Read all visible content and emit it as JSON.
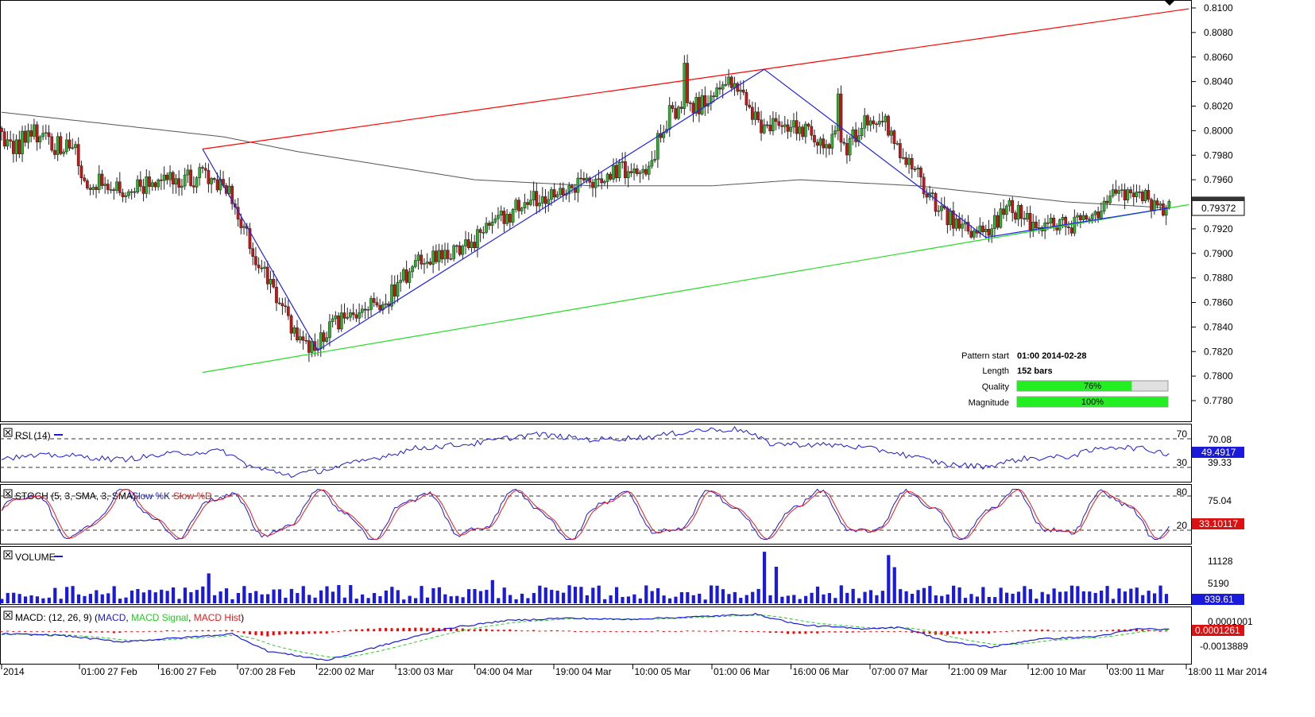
{
  "chart_data": [
    {
      "type": "candlestick",
      "pane": "price",
      "price_axis": {
        "ticks": [
          "0.8100",
          "0.8080",
          "0.8060",
          "0.8040",
          "0.8020",
          "0.8000",
          "0.7980",
          "0.7960",
          "0.7940",
          "0.7920",
          "0.7900",
          "0.7880",
          "0.7860",
          "0.7840",
          "0.7820",
          "0.7800",
          "0.7780"
        ],
        "ylim": [
          0.7767,
          0.8106
        ]
      },
      "last_price_label": "0.79372",
      "close_waypoints": [
        [
          0,
          0.7995
        ],
        [
          5,
          0.7985
        ],
        [
          10,
          0.8002
        ],
        [
          18,
          0.7988
        ],
        [
          24,
          0.799
        ],
        [
          28,
          0.796
        ],
        [
          40,
          0.7952
        ],
        [
          50,
          0.7955
        ],
        [
          60,
          0.796
        ],
        [
          68,
          0.7963
        ],
        [
          75,
          0.7955
        ],
        [
          80,
          0.7935
        ],
        [
          85,
          0.79
        ],
        [
          92,
          0.787
        ],
        [
          98,
          0.784
        ],
        [
          103,
          0.7825
        ],
        [
          108,
          0.783
        ],
        [
          112,
          0.7845
        ],
        [
          120,
          0.785
        ],
        [
          130,
          0.7862
        ],
        [
          140,
          0.789
        ],
        [
          150,
          0.79
        ],
        [
          160,
          0.791
        ],
        [
          170,
          0.793
        ],
        [
          180,
          0.7945
        ],
        [
          190,
          0.795
        ],
        [
          200,
          0.796
        ],
        [
          210,
          0.797
        ],
        [
          218,
          0.7965
        ],
        [
          226,
          0.8015
        ],
        [
          236,
          0.802
        ],
        [
          244,
          0.8042
        ],
        [
          250,
          0.803
        ],
        [
          256,
          0.8005
        ],
        [
          264,
          0.8008
        ],
        [
          272,
          0.8
        ],
        [
          280,
          0.799
        ],
        [
          286,
          0.7985
        ],
        [
          292,
          0.8012
        ],
        [
          298,
          0.801
        ],
        [
          304,
          0.7985
        ],
        [
          312,
          0.7955
        ],
        [
          318,
          0.7933
        ],
        [
          326,
          0.792
        ],
        [
          334,
          0.7915
        ],
        [
          340,
          0.7942
        ],
        [
          350,
          0.792
        ],
        [
          360,
          0.7923
        ],
        [
          370,
          0.7928
        ],
        [
          378,
          0.795
        ],
        [
          384,
          0.7947
        ],
        [
          390,
          0.794
        ],
        [
          395,
          0.7937
        ]
      ],
      "close_spikes": [
        [
          231,
          0.8055
        ],
        [
          283,
          0.803
        ],
        [
          282,
          0.8
        ]
      ],
      "moving_average": [
        [
          0,
          0.8015
        ],
        [
          75,
          0.7995
        ],
        [
          100,
          0.7983
        ],
        [
          160,
          0.796
        ],
        [
          200,
          0.7955
        ],
        [
          240,
          0.7955
        ],
        [
          270,
          0.796
        ],
        [
          310,
          0.7955
        ],
        [
          360,
          0.7942
        ],
        [
          395,
          0.7937
        ]
      ],
      "channel_upper": {
        "from": [
          68,
          0.7985
        ],
        "to": [
          395,
          0.8097
        ]
      },
      "channel_lower": {
        "from": [
          68,
          0.7803
        ],
        "to": [
          395,
          0.7937
        ]
      },
      "pattern_zigzag": [
        [
          68,
          0.7985
        ],
        [
          107,
          0.7821
        ],
        [
          258,
          0.805
        ],
        [
          333,
          0.7913
        ],
        [
          395,
          0.7937
        ]
      ]
    },
    {
      "type": "line",
      "pane": "RSI",
      "title": "RSI (14)",
      "levels": [
        70,
        30
      ],
      "ylim": [
        20,
        80
      ],
      "axis_labels": [
        "70.08",
        "39.33"
      ],
      "last_value_label": "49.4917",
      "waypoints": [
        [
          0,
          45
        ],
        [
          20,
          48
        ],
        [
          40,
          43
        ],
        [
          60,
          50
        ],
        [
          75,
          52
        ],
        [
          85,
          35
        ],
        [
          98,
          27
        ],
        [
          107,
          31
        ],
        [
          120,
          40
        ],
        [
          140,
          55
        ],
        [
          160,
          60
        ],
        [
          180,
          70
        ],
        [
          200,
          64
        ],
        [
          220,
          67
        ],
        [
          235,
          74
        ],
        [
          250,
          75
        ],
        [
          260,
          60
        ],
        [
          285,
          58
        ],
        [
          300,
          52
        ],
        [
          320,
          38
        ],
        [
          333,
          36
        ],
        [
          345,
          44
        ],
        [
          360,
          46
        ],
        [
          375,
          57
        ],
        [
          385,
          55
        ],
        [
          395,
          49.5
        ]
      ]
    },
    {
      "type": "line",
      "pane": "STOCH",
      "title": "STOCH (5, 3, SMA, 3, SMA)",
      "series": [
        {
          "name": "Slow %K"
        },
        {
          "name": "Slow %D"
        }
      ],
      "levels": [
        80,
        20
      ],
      "ylim": [
        0,
        100
      ],
      "axis_labels": [
        "75.04"
      ],
      "last_value_label": "33.10117"
    },
    {
      "type": "bar",
      "pane": "VOLUME",
      "title": "VOLUME",
      "ylim": [
        0,
        13000
      ],
      "axis_labels": [
        "11128",
        "5190"
      ],
      "last_value_label": "939.61",
      "spikes": [
        [
          70,
          7200
        ],
        [
          110,
          4100
        ],
        [
          165,
          5600
        ],
        [
          258,
          12400
        ],
        [
          262,
          8800
        ],
        [
          300,
          11600
        ],
        [
          302,
          8700
        ]
      ]
    },
    {
      "type": "line",
      "pane": "MACD",
      "title": "MACD: (12, 26, 9)",
      "series": [
        {
          "name": "MACD"
        },
        {
          "name": "MACD Signal"
        },
        {
          "name": "MACD Hist"
        }
      ],
      "ylim": [
        -0.0024,
        0.0017
      ],
      "axis_labels": [
        "0.0001001",
        "-0.0013889"
      ],
      "last_value_label": "0.0001261",
      "macd_waypoints": [
        [
          0,
          -0.0002
        ],
        [
          20,
          -0.0003
        ],
        [
          40,
          -0.0008
        ],
        [
          60,
          -0.0005
        ],
        [
          78,
          -0.0002
        ],
        [
          90,
          -0.0015
        ],
        [
          110,
          -0.0022
        ],
        [
          130,
          -0.001
        ],
        [
          150,
          0.0002
        ],
        [
          170,
          0.0008
        ],
        [
          190,
          0.001
        ],
        [
          210,
          0.0009
        ],
        [
          235,
          0.0011
        ],
        [
          255,
          0.0013
        ],
        [
          270,
          0.0005
        ],
        [
          290,
          0.0002
        ],
        [
          305,
          0.0003
        ],
        [
          320,
          -0.0008
        ],
        [
          335,
          -0.0012
        ],
        [
          350,
          -0.0006
        ],
        [
          370,
          -0.0004
        ],
        [
          385,
          0.0002
        ],
        [
          395,
          0.00013
        ]
      ]
    }
  ],
  "time_axis": [
    "2014",
    "01:00 27 Feb",
    "16:00 27 Feb",
    "07:00 28 Feb",
    "22:00 02 Mar",
    "13:00 03 Mar",
    "04:00 04 Mar",
    "19:00 04 Mar",
    "10:00 05 Mar",
    "01:00 06 Mar",
    "16:00 06 Mar",
    "07:00 07 Mar",
    "21:00 09 Mar",
    "12:00 10 Mar",
    "03:00 11 Mar",
    "18:00 11 Mar 2014"
  ],
  "info_box": {
    "pattern_start_label": "Pattern start",
    "pattern_start_value": "01:00 2014-02-28",
    "length_label": "Length",
    "length_value": "152 bars",
    "quality_label": "Quality",
    "quality_text": "76%",
    "quality_fraction": 0.76,
    "magnitude_label": "Magnitude",
    "magnitude_text": "100%",
    "magnitude_fraction": 1.0
  },
  "indicator_levels": {
    "rsi_upper": "70",
    "rsi_lower": "30",
    "stoch_upper": "80",
    "stoch_lower": "20"
  },
  "colors": {
    "bull_candle": "#2bb32b",
    "bear_candle": "#cc1414",
    "channel_upper": "#ff0000",
    "channel_lower": "#22dd22",
    "pattern_zigzag": "#2222ee",
    "moving_average": "#555555",
    "rsi_line": "#1a1adb",
    "stoch_k": "#1a1adb",
    "stoch_d": "#ee1a1a",
    "volume_bar": "#1a1add",
    "macd_line": "#1a1adb",
    "macd_signal": "#22cc22",
    "macd_hist": "#ff0000",
    "accent": "#111111",
    "quality_fill": "#22ee22"
  }
}
